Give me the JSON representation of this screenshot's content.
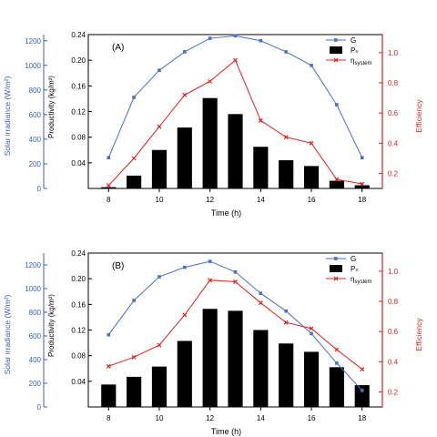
{
  "chart_data": [
    {
      "panel_label": "(A)",
      "type": "bar",
      "x": [
        8,
        9,
        10,
        11,
        12,
        13,
        14,
        15,
        16,
        17,
        18
      ],
      "xlabel": "Time (h)",
      "x_ticks": [
        8,
        10,
        12,
        14,
        16,
        18
      ],
      "xlim": [
        7.2,
        18.8
      ],
      "axes": {
        "solar": {
          "label": "Solar irradiance (W/m²)",
          "lim": [
            0,
            1250
          ],
          "ticks": [
            0,
            200,
            400,
            600,
            800,
            1000,
            1200
          ],
          "color": "#3b5fb5"
        },
        "productivity": {
          "label": "Productivity (kg/m²)",
          "lim": [
            0.0,
            0.24
          ],
          "ticks": [
            0.04,
            0.08,
            0.12,
            0.16,
            0.2,
            0.24
          ],
          "tick_labels": [
            "0.04",
            "0.08",
            "0.12",
            "0.16",
            "0.20",
            "0.24"
          ],
          "color": "#000000"
        },
        "efficiency": {
          "label": "Efficiency",
          "lim": [
            0.1,
            1.12
          ],
          "ticks": [
            0.2,
            0.4,
            0.6,
            0.8,
            1.0
          ],
          "tick_labels": [
            "0.2",
            "0.4",
            "0.6",
            "0.8",
            "1.0"
          ],
          "color": "#e02020"
        }
      },
      "series": [
        {
          "name": "G",
          "axis": "solar",
          "kind": "line",
          "color": "#4a6fc9",
          "marker": "square",
          "values": [
            250,
            740,
            960,
            1110,
            1220,
            1240,
            1200,
            1110,
            1000,
            680,
            250
          ]
        },
        {
          "name": "Pₙ",
          "axis": "productivity",
          "kind": "bar",
          "color": "#000000",
          "values": [
            0.002,
            0.02,
            0.06,
            0.095,
            0.141,
            0.116,
            0.065,
            0.044,
            0.035,
            0.012,
            0.005
          ]
        },
        {
          "name": "η",
          "name_sub": "system",
          "axis": "efficiency",
          "kind": "line",
          "color": "#e02020",
          "marker": "x",
          "values": [
            0.12,
            0.3,
            0.51,
            0.72,
            0.81,
            0.95,
            0.55,
            0.44,
            0.4,
            0.16,
            0.13
          ]
        }
      ],
      "legend_position": "top-right"
    },
    {
      "panel_label": "(B)",
      "type": "bar",
      "x": [
        8,
        9,
        10,
        11,
        12,
        13,
        14,
        15,
        16,
        17,
        18
      ],
      "xlabel": "Time (h)",
      "x_ticks": [
        8,
        10,
        12,
        14,
        16,
        18
      ],
      "xlim": [
        7.2,
        18.8
      ],
      "axes": {
        "solar": {
          "label": "Solar irradiance (W/m²)",
          "lim": [
            0,
            1300
          ],
          "ticks": [
            0,
            200,
            400,
            600,
            800,
            1000,
            1200
          ],
          "color": "#3b5fb5"
        },
        "productivity": {
          "label": "Productivity (kg/m²)",
          "lim": [
            0.0,
            0.24
          ],
          "ticks": [
            0.04,
            0.08,
            0.12,
            0.16,
            0.2,
            0.24
          ],
          "tick_labels": [
            "0.04",
            "0.08",
            "0.12",
            "0.16",
            "0.20",
            "0.24"
          ],
          "color": "#000000"
        },
        "efficiency": {
          "label": "Efficiency",
          "lim": [
            0.1,
            1.12
          ],
          "ticks": [
            0.2,
            0.4,
            0.6,
            0.8,
            1.0
          ],
          "tick_labels": [
            "0.2",
            "0.4",
            "0.6",
            "0.8",
            "1.0"
          ],
          "color": "#e02020"
        }
      },
      "series": [
        {
          "name": "G",
          "axis": "solar",
          "kind": "line",
          "color": "#4a6fc9",
          "marker": "square",
          "values": [
            610,
            900,
            1100,
            1180,
            1230,
            1140,
            960,
            810,
            620,
            370,
            140
          ]
        },
        {
          "name": "Pₙ",
          "axis": "productivity",
          "kind": "bar",
          "color": "#000000",
          "values": [
            0.035,
            0.047,
            0.063,
            0.103,
            0.153,
            0.15,
            0.12,
            0.099,
            0.086,
            0.062,
            0.034
          ]
        },
        {
          "name": "η",
          "name_sub": "system",
          "axis": "efficiency",
          "kind": "line",
          "color": "#e02020",
          "marker": "x",
          "values": [
            0.37,
            0.43,
            0.51,
            0.71,
            0.94,
            0.93,
            0.79,
            0.66,
            0.62,
            0.48,
            0.35
          ]
        }
      ],
      "legend_position": "top-right"
    }
  ]
}
